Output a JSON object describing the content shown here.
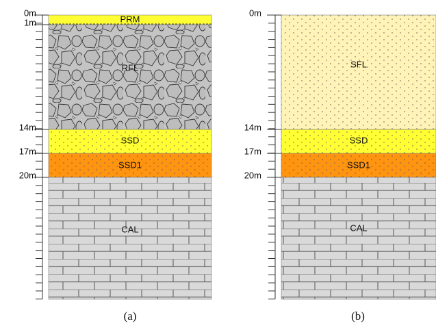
{
  "panels": [
    {
      "label": "(a)",
      "depths": [
        "0m",
        "1m",
        "14m",
        "17m",
        "20m"
      ],
      "layers": [
        "PRM",
        "RFL",
        "SSD",
        "SSD1",
        "CAL"
      ]
    },
    {
      "label": "(b)",
      "depths": [
        "0m",
        "14m",
        "17m",
        "20m"
      ],
      "layers": [
        "SFL",
        "SSD",
        "SSD1",
        "CAL"
      ]
    }
  ]
}
